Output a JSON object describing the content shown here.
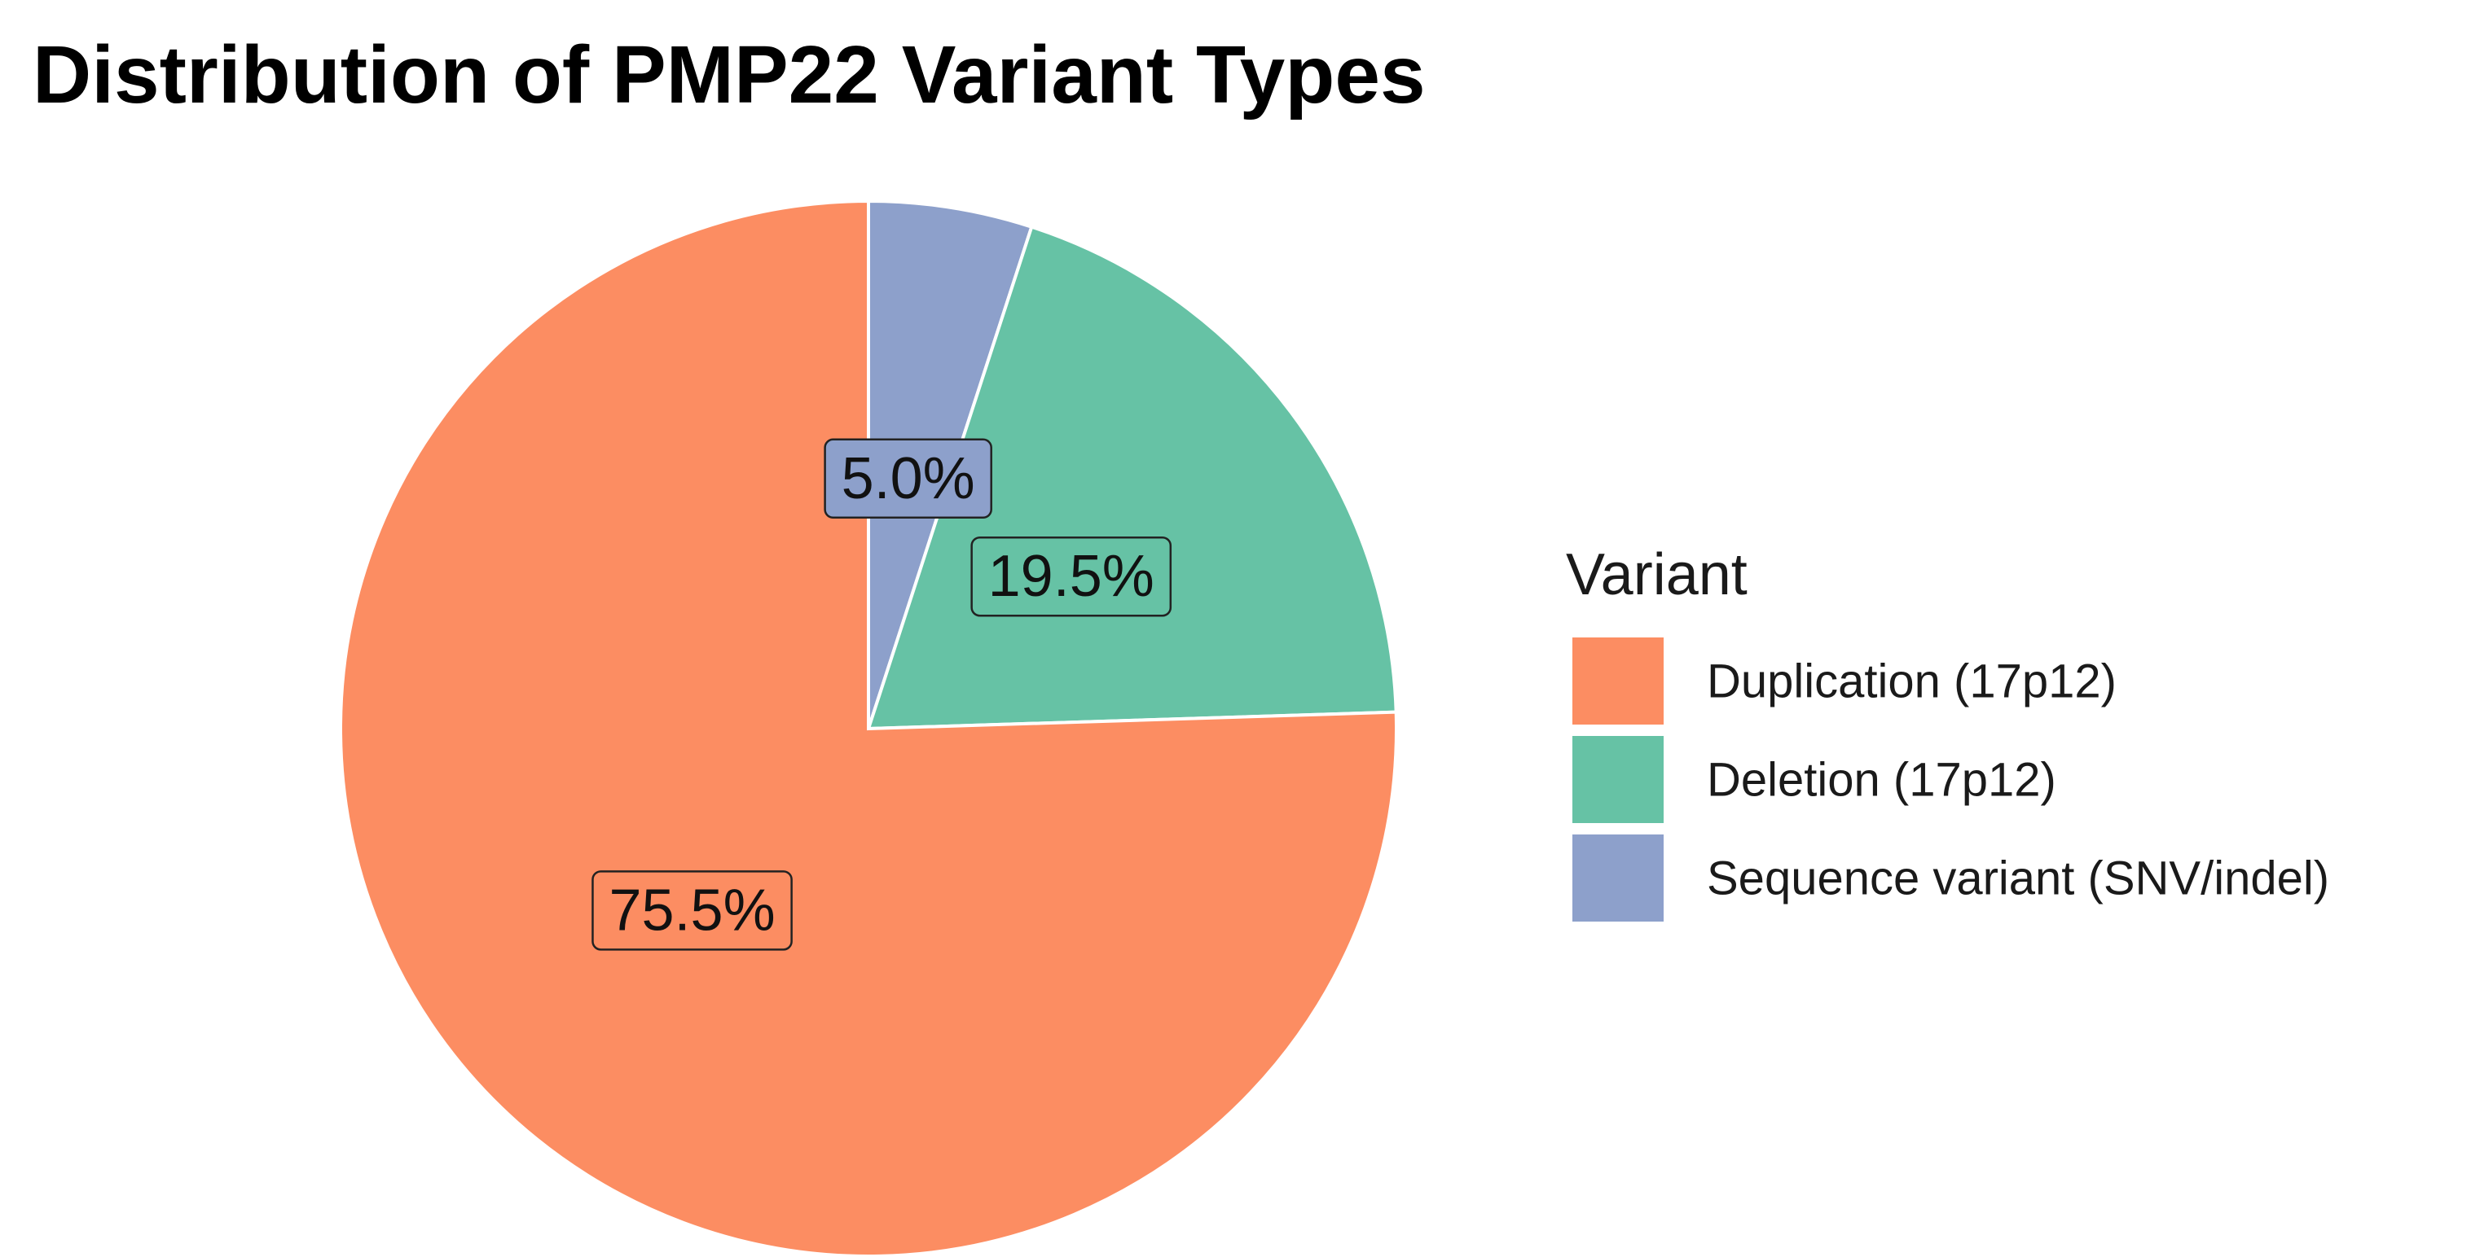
{
  "chart_data": {
    "type": "pie",
    "title": "Distribution of PMP22 Variant Types",
    "legend_title": "Variant",
    "categories": [
      "Duplication (17p12)",
      "Deletion (17p12)",
      "Sequence variant (SNV/indel)"
    ],
    "values": [
      75.5,
      19.5,
      5
    ],
    "value_labels": [
      "75.5%",
      "19.5%",
      "5.0%"
    ],
    "colors": [
      "#FC8D62",
      "#66C2A5",
      "#8DA0CB"
    ],
    "legend": "right"
  }
}
